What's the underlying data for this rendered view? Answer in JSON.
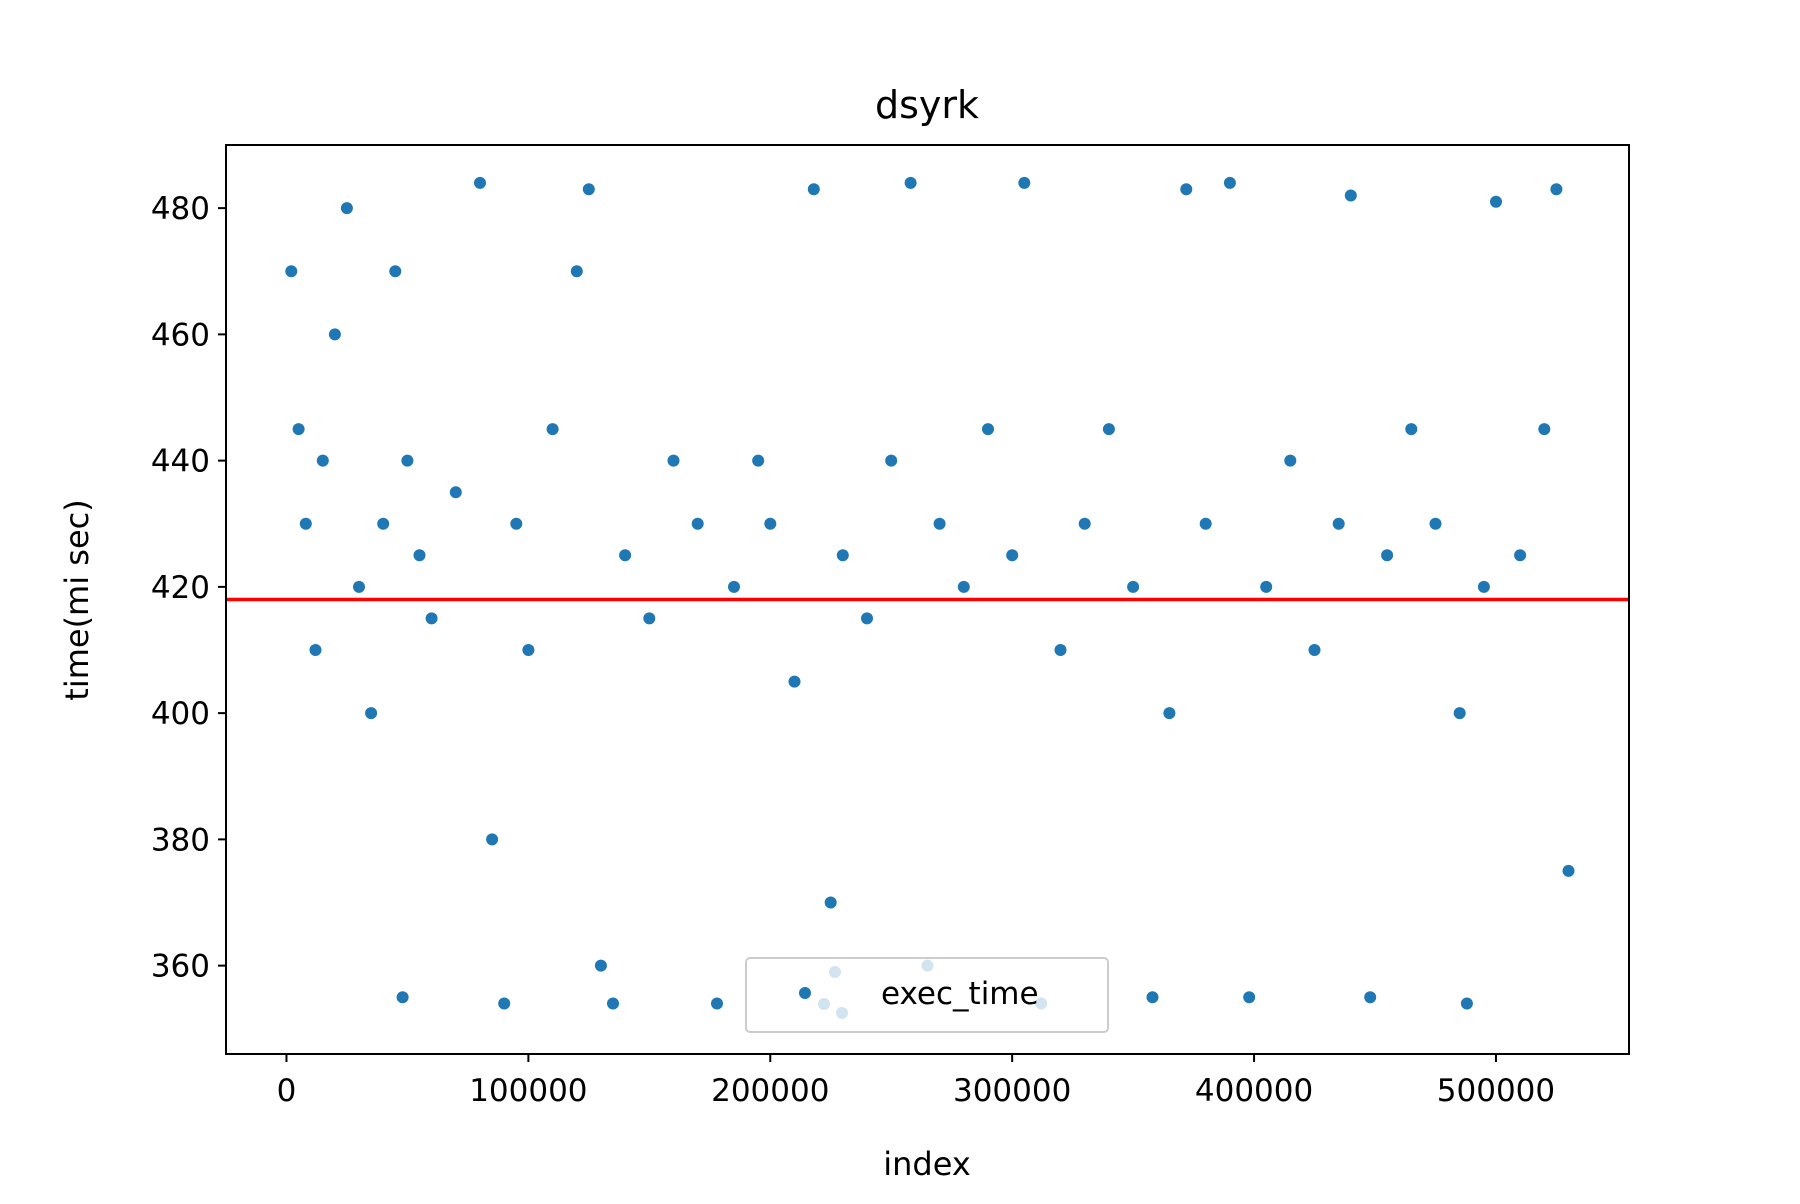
{
  "chart_data": {
    "type": "scatter",
    "title": "dsyrk",
    "xlabel": "index",
    "ylabel": "time(mi sec)",
    "xlim": [
      -25000,
      555000
    ],
    "ylim": [
      346,
      490
    ],
    "xticks": [
      0,
      100000,
      200000,
      300000,
      400000,
      500000
    ],
    "yticks": [
      360,
      380,
      400,
      420,
      440,
      460,
      480
    ],
    "grid": false,
    "legend": {
      "position": "lower-center",
      "entries": [
        "exec_time"
      ]
    },
    "reference_line": {
      "orientation": "horizontal",
      "y": 418,
      "color": "#ff0000"
    },
    "series": [
      {
        "name": "exec_time",
        "color": "#1f77b4",
        "x_range": [
          0,
          530000
        ],
        "y_range": [
          353,
          484
        ],
        "typical_band": [
          405,
          445
        ],
        "description_points": [
          [
            2000,
            470
          ],
          [
            5000,
            445
          ],
          [
            8000,
            430
          ],
          [
            12000,
            410
          ],
          [
            15000,
            440
          ],
          [
            20000,
            460
          ],
          [
            25000,
            480
          ],
          [
            30000,
            420
          ],
          [
            35000,
            400
          ],
          [
            40000,
            430
          ],
          [
            45000,
            470
          ],
          [
            48000,
            355
          ],
          [
            50000,
            440
          ],
          [
            55000,
            425
          ],
          [
            60000,
            415
          ],
          [
            70000,
            435
          ],
          [
            80000,
            484
          ],
          [
            85000,
            380
          ],
          [
            90000,
            354
          ],
          [
            95000,
            430
          ],
          [
            100000,
            410
          ],
          [
            110000,
            445
          ],
          [
            120000,
            470
          ],
          [
            125000,
            483
          ],
          [
            130000,
            360
          ],
          [
            135000,
            354
          ],
          [
            140000,
            425
          ],
          [
            150000,
            415
          ],
          [
            160000,
            440
          ],
          [
            170000,
            430
          ],
          [
            178000,
            354
          ],
          [
            185000,
            420
          ],
          [
            195000,
            440
          ],
          [
            200000,
            430
          ],
          [
            210000,
            405
          ],
          [
            218000,
            483
          ],
          [
            225000,
            370
          ],
          [
            230000,
            425
          ],
          [
            240000,
            415
          ],
          [
            250000,
            440
          ],
          [
            258000,
            484
          ],
          [
            265000,
            360
          ],
          [
            270000,
            430
          ],
          [
            280000,
            420
          ],
          [
            290000,
            445
          ],
          [
            300000,
            425
          ],
          [
            305000,
            484
          ],
          [
            312000,
            354
          ],
          [
            320000,
            410
          ],
          [
            330000,
            430
          ],
          [
            340000,
            445
          ],
          [
            350000,
            420
          ],
          [
            358000,
            355
          ],
          [
            365000,
            400
          ],
          [
            372000,
            483
          ],
          [
            380000,
            430
          ],
          [
            390000,
            484
          ],
          [
            398000,
            355
          ],
          [
            405000,
            420
          ],
          [
            415000,
            440
          ],
          [
            425000,
            410
          ],
          [
            435000,
            430
          ],
          [
            440000,
            482
          ],
          [
            448000,
            355
          ],
          [
            455000,
            425
          ],
          [
            465000,
            445
          ],
          [
            475000,
            430
          ],
          [
            485000,
            400
          ],
          [
            488000,
            354
          ],
          [
            495000,
            420
          ],
          [
            500000,
            481
          ],
          [
            510000,
            425
          ],
          [
            520000,
            445
          ],
          [
            525000,
            483
          ],
          [
            530000,
            375
          ]
        ]
      }
    ]
  }
}
